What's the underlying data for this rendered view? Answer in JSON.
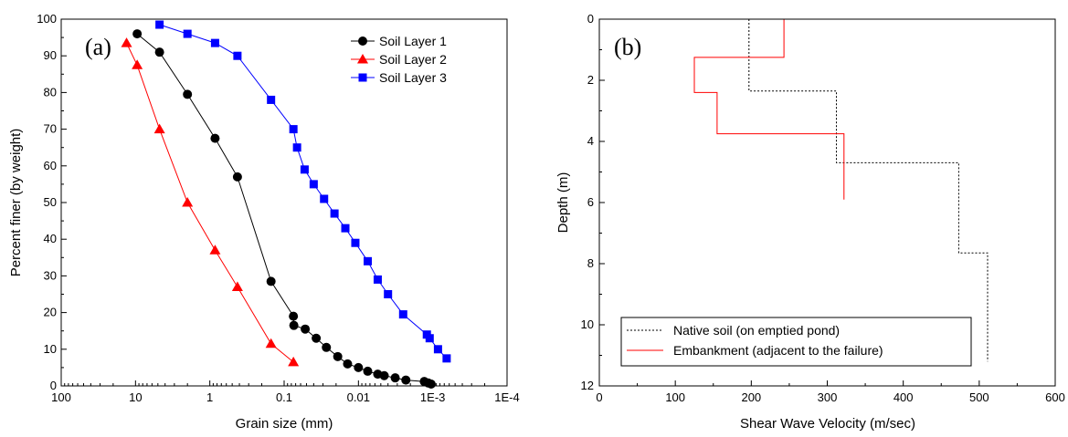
{
  "chart_data": [
    {
      "type": "line",
      "panel_label": "(a)",
      "xlabel": "Grain size (mm)",
      "ylabel": "Percent finer (by weight)",
      "x_scale": "log",
      "x_reversed": true,
      "xlim": [
        100,
        0.0001
      ],
      "ylim": [
        0,
        100
      ],
      "x_ticks": [
        100,
        10,
        1,
        0.1,
        0.01,
        0.001,
        0.0001
      ],
      "x_tick_labels": [
        "100",
        "10",
        "1",
        "0.1",
        "0.01",
        "1E-3",
        "1E-4"
      ],
      "y_ticks": [
        0,
        10,
        20,
        30,
        40,
        50,
        60,
        70,
        80,
        90,
        100
      ],
      "y_tick_labels": [
        "0",
        "10",
        "20",
        "30",
        "40",
        "50",
        "60",
        "70",
        "80",
        "90",
        "100"
      ],
      "grid": false,
      "legend_position": "top-right",
      "series": [
        {
          "name": "Soil Layer 1",
          "color": "#000000",
          "marker": "circle",
          "x": [
            9.5,
            4.75,
            2.0,
            0.85,
            0.425,
            0.15,
            0.075,
            0.074,
            0.052,
            0.037,
            0.027,
            0.019,
            0.014,
            0.01,
            0.0075,
            0.0055,
            0.0045,
            0.0032,
            0.0023,
            0.0013,
            0.00115,
            0.00105
          ],
          "y": [
            96,
            91,
            79.5,
            67.5,
            57,
            28.5,
            19,
            16.5,
            15.5,
            13,
            10.5,
            8,
            6,
            5,
            4,
            3.2,
            2.8,
            2.2,
            1.6,
            1.2,
            0.8,
            0.5
          ]
        },
        {
          "name": "Soil Layer 2",
          "color": "#ff0000",
          "marker": "triangle",
          "x": [
            13.2,
            9.5,
            4.75,
            2.0,
            0.85,
            0.425,
            0.15,
            0.075
          ],
          "y": [
            93.5,
            87.5,
            70,
            50,
            37,
            27,
            11.5,
            6.5
          ]
        },
        {
          "name": "Soil Layer 3",
          "color": "#0000ff",
          "marker": "square",
          "x": [
            4.75,
            2.0,
            0.85,
            0.425,
            0.15,
            0.075,
            0.067,
            0.053,
            0.04,
            0.029,
            0.021,
            0.015,
            0.011,
            0.0075,
            0.0055,
            0.004,
            0.0025,
            0.0012,
            0.0011,
            0.00085,
            0.00065
          ],
          "y": [
            98.5,
            96,
            93.5,
            90,
            78,
            70,
            65,
            59,
            55,
            51,
            47,
            43,
            39,
            34,
            29,
            25,
            19.5,
            14,
            13,
            10,
            7.5
          ]
        }
      ]
    },
    {
      "type": "line",
      "panel_label": "(b)",
      "xlabel": "Shear Wave Velocity (m/sec)",
      "ylabel": "Depth (m)",
      "xlim": [
        0,
        600
      ],
      "ylim": [
        12,
        0
      ],
      "y_reversed": true,
      "x_ticks": [
        0,
        100,
        200,
        300,
        400,
        500,
        600
      ],
      "x_tick_labels": [
        "0",
        "100",
        "200",
        "300",
        "400",
        "500",
        "600"
      ],
      "y_ticks": [
        0,
        2,
        4,
        6,
        8,
        10,
        12
      ],
      "y_tick_labels": [
        "0",
        "2",
        "4",
        "6",
        "8",
        "10",
        "12"
      ],
      "grid": false,
      "legend_position": "bottom-left",
      "series": [
        {
          "name": "Native soil (on emptied pond)",
          "color": "#000000",
          "line_style": "dotted",
          "x": [
            197,
            197,
            312,
            312,
            322,
            322,
            473,
            473,
            511,
            511
          ],
          "y": [
            0,
            2.35,
            2.35,
            4.7,
            4.7,
            4.7,
            4.7,
            7.65,
            7.65,
            11.2
          ]
        },
        {
          "name": "Embankment (adjacent to the failure)",
          "color": "#ff0000",
          "line_style": "solid",
          "x": [
            243,
            243,
            125,
            125,
            155,
            155,
            322,
            322
          ],
          "y": [
            0,
            1.25,
            1.25,
            2.4,
            2.4,
            3.75,
            3.75,
            5.9
          ]
        }
      ]
    }
  ]
}
